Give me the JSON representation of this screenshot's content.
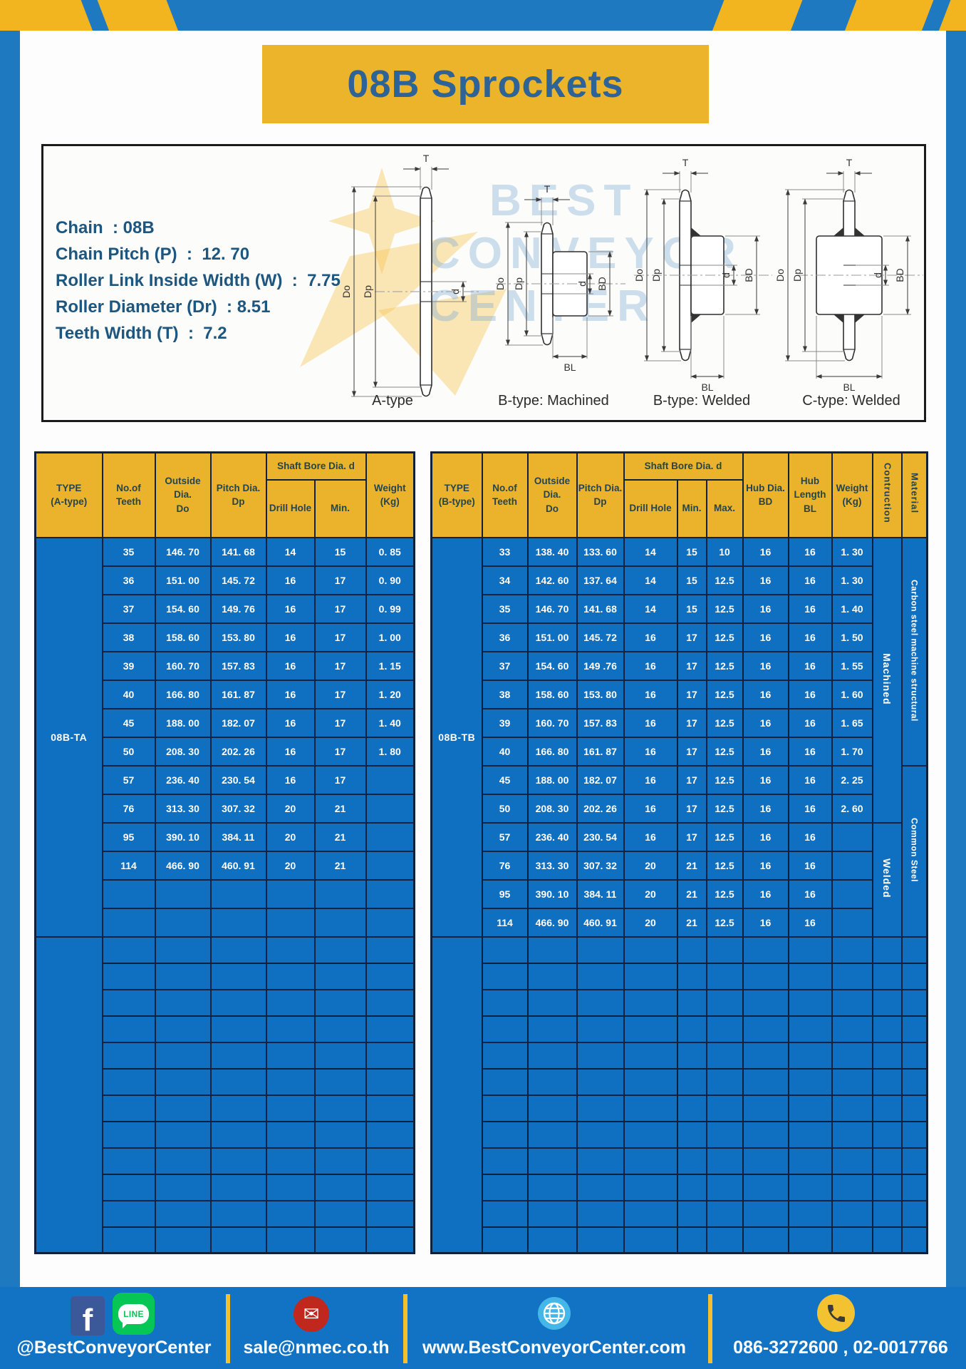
{
  "title": "08B Sprockets",
  "specs": {
    "lines": [
      "Chain  : 08B",
      "Chain Pitch (P)  :  12. 70",
      "Roller Link Inside Width (W)  :  7.75",
      "Roller Diameter (Dr)  : 8.51",
      "Teeth Width (T)  :  7.2"
    ]
  },
  "diagram": {
    "labels": [
      "A-type",
      "B-type: Machined",
      "B-type: Welded",
      "C-type: Welded"
    ],
    "dims": {
      "t": "T",
      "outside": "Do",
      "pitch": "Dp",
      "bore": "d",
      "hub_dia": "BD",
      "hub_len": "BL"
    },
    "watermark": [
      "BEST",
      "CONVEYOR",
      "CENTER"
    ]
  },
  "left_table": {
    "header": {
      "type": "TYPE\n(A-type)",
      "teeth": "No.of\nTeeth",
      "outside": "Outside\nDia.\nDo",
      "pitch": "Pitch Dia.\nDp",
      "shaft_bore": "Shaft Bore Dia. d",
      "drill": "Drill Hole",
      "min": "Min.",
      "weight": "Weight\n(Kg)"
    },
    "type_label": "08B-TA",
    "rows": [
      [
        "35",
        "146. 70",
        "141. 68",
        "14",
        "15",
        "0. 85"
      ],
      [
        "36",
        "151. 00",
        "145. 72",
        "16",
        "17",
        "0. 90"
      ],
      [
        "37",
        "154. 60",
        "149. 76",
        "16",
        "17",
        "0. 99"
      ],
      [
        "38",
        "158. 60",
        "153. 80",
        "16",
        "17",
        "1. 00"
      ],
      [
        "39",
        "160. 70",
        "157. 83",
        "16",
        "17",
        "1. 15"
      ],
      [
        "40",
        "166. 80",
        "161. 87",
        "16",
        "17",
        "1. 20"
      ],
      [
        "45",
        "188. 00",
        "182. 07",
        "16",
        "17",
        "1. 40"
      ],
      [
        "50",
        "208. 30",
        "202. 26",
        "16",
        "17",
        "1. 80"
      ],
      [
        "57",
        "236. 40",
        "230. 54",
        "16",
        "17",
        ""
      ],
      [
        "76",
        "313. 30",
        "307. 32",
        "20",
        "21",
        ""
      ],
      [
        "95",
        "390. 10",
        "384. 11",
        "20",
        "21",
        ""
      ],
      [
        "114",
        "466. 90",
        "460. 91",
        "20",
        "21",
        ""
      ]
    ],
    "empty_small_rows": 2,
    "empty_large_rows": 12
  },
  "right_table": {
    "header": {
      "type": "TYPE\n(B-type)",
      "teeth": "No.of\nTeeth",
      "outside": "Outside\nDia.\nDo",
      "pitch": "Pitch Dia.\nDp",
      "shaft_bore": "Shaft Bore Dia. d",
      "drill": "Drill Hole",
      "min": "Min.",
      "max": "Max.",
      "hub_dia": "Hub Dia.\nBD",
      "hub_len": "Hub\nLength\nBL",
      "weight": "Weight\n(Kg)",
      "construction": "Contruction",
      "material": "Material"
    },
    "type_label": "08B-TB",
    "rows": [
      [
        "33",
        "138. 40",
        "133. 60",
        "14",
        "15",
        "10",
        "16",
        "16",
        "1. 30"
      ],
      [
        "34",
        "142. 60",
        "137. 64",
        "14",
        "15",
        "12.5",
        "16",
        "16",
        "1. 30"
      ],
      [
        "35",
        "146. 70",
        "141. 68",
        "14",
        "15",
        "12.5",
        "16",
        "16",
        "1. 40"
      ],
      [
        "36",
        "151. 00",
        "145. 72",
        "16",
        "17",
        "12.5",
        "16",
        "16",
        "1. 50"
      ],
      [
        "37",
        "154. 60",
        "149 .76",
        "16",
        "17",
        "12.5",
        "16",
        "16",
        "1. 55"
      ],
      [
        "38",
        "158. 60",
        "153. 80",
        "16",
        "17",
        "12.5",
        "16",
        "16",
        "1. 60"
      ],
      [
        "39",
        "160. 70",
        "157. 83",
        "16",
        "17",
        "12.5",
        "16",
        "16",
        "1. 65"
      ],
      [
        "40",
        "166. 80",
        "161. 87",
        "16",
        "17",
        "12.5",
        "16",
        "16",
        "1. 70"
      ],
      [
        "45",
        "188. 00",
        "182. 07",
        "16",
        "17",
        "12.5",
        "16",
        "16",
        "2. 25"
      ],
      [
        "50",
        "208. 30",
        "202. 26",
        "16",
        "17",
        "12.5",
        "16",
        "16",
        "2. 60"
      ],
      [
        "57",
        "236. 40",
        "230. 54",
        "16",
        "17",
        "12.5",
        "16",
        "16",
        ""
      ],
      [
        "76",
        "313. 30",
        "307. 32",
        "20",
        "21",
        "12.5",
        "16",
        "16",
        ""
      ],
      [
        "95",
        "390. 10",
        "384. 11",
        "20",
        "21",
        "12.5",
        "16",
        "16",
        ""
      ],
      [
        "114",
        "466. 90",
        "460. 91",
        "20",
        "21",
        "12.5",
        "16",
        "16",
        ""
      ]
    ],
    "construction_sections": [
      {
        "label": "Machined",
        "span": 10
      },
      {
        "label": "Welded",
        "span": 4
      }
    ],
    "material_sections": [
      {
        "label": "Carbon steel  machine  structural",
        "span": 8
      },
      {
        "label": "Common  Steel",
        "span": 6
      }
    ],
    "empty_large_rows": 12
  },
  "footer": {
    "social": "@BestConveyorCenter",
    "email": "sale@nmec.co.th",
    "website": "www.BestConveyorCenter.com",
    "phones": "086-3272600 , 02-0017766",
    "fb_letter": "f",
    "line_label": "LINE"
  },
  "colors": {
    "frame_blue": "#1e79c0",
    "footer_blue": "#1273c4",
    "stripe_yellow": "#f2b41f",
    "title_bg": "#ecb42a",
    "title_text": "#2e6397",
    "table_blue": "#0f70c2",
    "grid_line": "#0e2240",
    "header_yellow": "#eab32b",
    "header_text": "#25444d",
    "spec_text": "#1d567f",
    "divider_yellow": "#f2c12d",
    "fb": "#3b5998",
    "line_green": "#06c755",
    "email_red": "#c0281e",
    "globe_blue": "#45b6e8",
    "phone_yellow": "#f2c230"
  }
}
